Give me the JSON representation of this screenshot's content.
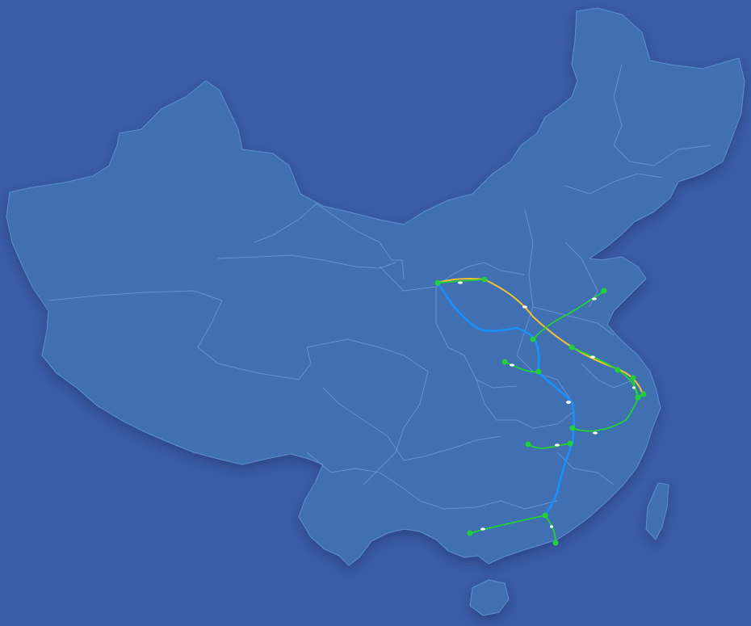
{
  "map": {
    "region": "china",
    "colors": {
      "background": "#3b5ba5",
      "land": "#3f6fb1",
      "province_border": "#6f9fe0"
    }
  },
  "routes": [
    {
      "color": "#f2c230"
    },
    {
      "color": "#1a90ff"
    },
    {
      "color": "#22d13a"
    }
  ],
  "markers": {
    "node_color": "#22d13a",
    "train_icon": "train-icon"
  }
}
